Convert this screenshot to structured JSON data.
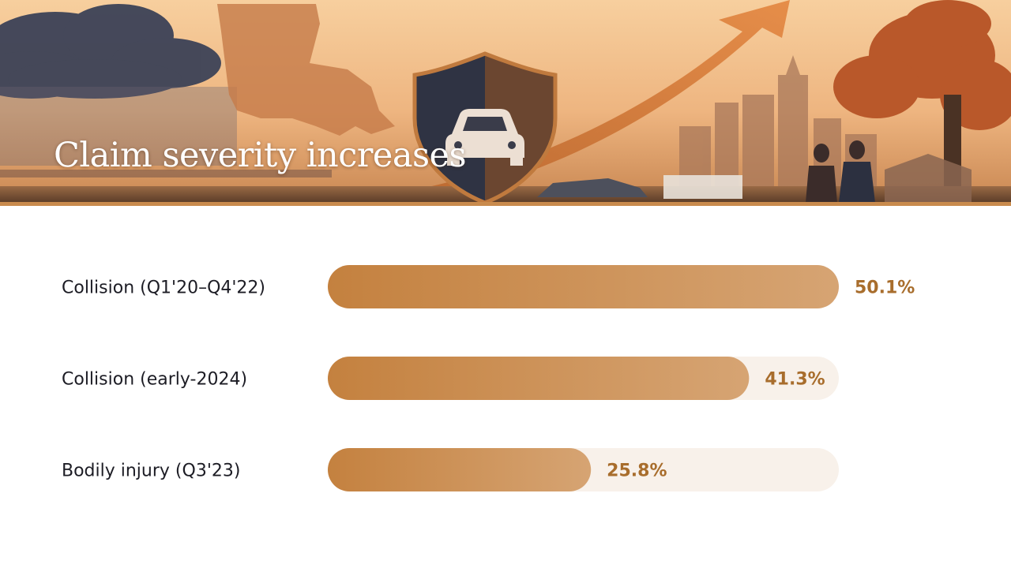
{
  "slide": {
    "title": "Claim severity increases"
  },
  "colors": {
    "bar_start": "#c4813f",
    "bar_end": "#d6a473",
    "track": "#f8f1ea",
    "value_text": "#a86d2c",
    "label_text": "#1c1c24",
    "accent_line": "#c98b4d"
  },
  "chart_data": {
    "type": "bar",
    "orientation": "horizontal",
    "categories": [
      "Collision (Q1'20–Q4'22)",
      "Collision (early-2024)",
      "Bodily injury (Q3'23)"
    ],
    "values": [
      50.1,
      41.3,
      25.8
    ],
    "value_labels": [
      "50.1%",
      "41.3%",
      "25.8%"
    ],
    "xlim": [
      0,
      50.1
    ],
    "grid": false,
    "legend": "none"
  }
}
